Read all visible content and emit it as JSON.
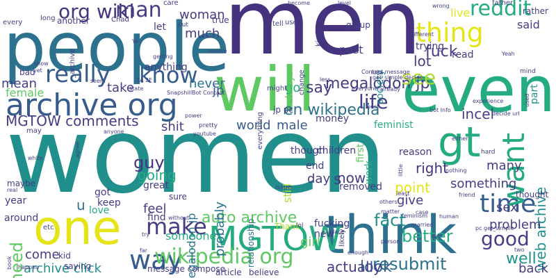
{
  "palette": {
    "purple": "#46337e",
    "indigo": "#433e85",
    "blue": "#365c8d",
    "slate": "#2c728e",
    "teal": "#21908d",
    "green": "#25ab82",
    "lime": "#5ec962",
    "yellowgreen": "#addc30",
    "yellow": "#e5e419"
  },
  "words": [
    {
      "text": "women",
      "color": "teal"
    },
    {
      "text": "men",
      "color": "purple"
    },
    {
      "text": "people",
      "color": "slate"
    },
    {
      "text": "even",
      "color": "green"
    },
    {
      "text": "one",
      "color": "yellow"
    },
    {
      "text": "think",
      "color": "slate"
    },
    {
      "text": "will",
      "color": "lime"
    },
    {
      "text": "gt",
      "color": "green"
    },
    {
      "text": "archive org",
      "color": "blue"
    },
    {
      "text": "MGTOW",
      "color": "green"
    },
    {
      "text": "thing",
      "color": "yellow"
    },
    {
      "text": "time",
      "color": "blue"
    },
    {
      "text": "want",
      "color": "green"
    },
    {
      "text": "really",
      "color": "blue"
    },
    {
      "text": "know",
      "color": "blue"
    },
    {
      "text": "way",
      "color": "blue"
    },
    {
      "text": "make",
      "color": "indigo"
    },
    {
      "text": "good",
      "color": "indigo"
    },
    {
      "text": "wikipedia org",
      "color": "lime"
    },
    {
      "text": "reddit",
      "color": "green"
    },
    {
      "text": "org wiki",
      "color": "purple"
    },
    {
      "text": "man",
      "color": "indigo"
    },
    {
      "text": "en wikipedia",
      "color": "slate"
    },
    {
      "text": "megalodon jp",
      "color": "indigo"
    },
    {
      "text": "life",
      "color": "indigo"
    },
    {
      "text": "see",
      "color": "yellowgreen"
    },
    {
      "text": "MGTOW comments",
      "color": "indigo"
    },
    {
      "text": "auto archive",
      "color": "lime"
    },
    {
      "text": "need",
      "color": "lime"
    },
    {
      "text": "resubmit",
      "color": "slate"
    },
    {
      "text": "fuck",
      "color": "indigo"
    },
    {
      "text": "woman",
      "color": "indigo"
    },
    {
      "text": "much",
      "color": "indigo"
    },
    {
      "text": "say",
      "color": "indigo"
    },
    {
      "text": "lot",
      "color": "indigo"
    },
    {
      "text": "live",
      "color": "yellow"
    },
    {
      "text": "said",
      "color": "indigo"
    },
    {
      "text": "post",
      "color": "indigo"
    },
    {
      "text": "never",
      "color": "slate"
    },
    {
      "text": "guy",
      "color": "purple"
    },
    {
      "text": "right",
      "color": "purple"
    },
    {
      "text": "look",
      "color": "blue"
    },
    {
      "text": "well",
      "color": "teal"
    },
    {
      "text": "web archive",
      "color": "teal"
    },
    {
      "text": "fact",
      "color": "teal"
    },
    {
      "text": "better",
      "color": "green"
    },
    {
      "text": "actually",
      "color": "indigo"
    },
    {
      "text": "back",
      "color": "indigo"
    },
    {
      "text": "problem",
      "color": "indigo"
    },
    {
      "text": "sex",
      "color": "indigo"
    },
    {
      "text": "incel",
      "color": "indigo"
    },
    {
      "text": "world",
      "color": "blue"
    },
    {
      "text": "male",
      "color": "blue"
    },
    {
      "text": "shit",
      "color": "indigo"
    },
    {
      "text": "female",
      "color": "lime"
    },
    {
      "text": "take",
      "color": "indigo"
    },
    {
      "text": "mean",
      "color": "indigo"
    },
    {
      "text": "go",
      "color": "green"
    },
    {
      "text": "archive click",
      "color": "teal"
    },
    {
      "text": "point",
      "color": "yellow"
    },
    {
      "text": "something",
      "color": "indigo"
    },
    {
      "text": "give",
      "color": "indigo"
    },
    {
      "text": "many",
      "color": "indigo"
    },
    {
      "text": "feel",
      "color": "indigo"
    },
    {
      "text": "going",
      "color": "green"
    },
    {
      "text": "now",
      "color": "indigo"
    },
    {
      "text": "girl",
      "color": "lime"
    },
    {
      "text": "come",
      "color": "indigo"
    },
    {
      "text": "u",
      "color": "slate"
    },
    {
      "text": "s",
      "color": "indigo"
    },
    {
      "text": "probably",
      "color": "slate"
    },
    {
      "text": "megalodon jp",
      "color": "slate"
    },
    {
      "text": "jp",
      "color": "blue"
    },
    {
      "text": "someone",
      "color": "green"
    },
    {
      "text": "day",
      "color": "indigo"
    },
    {
      "text": "feminist",
      "color": "green"
    },
    {
      "text": "anything",
      "color": "indigo"
    },
    {
      "text": "always",
      "color": "lime"
    },
    {
      "text": "society",
      "color": "teal"
    },
    {
      "text": "part",
      "color": "teal"
    },
    {
      "text": "read",
      "color": "indigo"
    },
    {
      "text": "trying",
      "color": "indigo"
    },
    {
      "text": "still",
      "color": "yellowgreen"
    },
    {
      "text": "great",
      "color": "indigo"
    },
    {
      "text": "keep",
      "color": "indigo"
    },
    {
      "text": "got",
      "color": "indigo"
    },
    {
      "text": "find",
      "color": "indigo"
    },
    {
      "text": "work",
      "color": "green"
    },
    {
      "text": "children",
      "color": "indigo"
    },
    {
      "text": "though",
      "color": "indigo"
    },
    {
      "text": "first",
      "color": "lime"
    },
    {
      "text": "removed",
      "color": "indigo"
    },
    {
      "text": "money",
      "color": "indigo"
    },
    {
      "text": "fucking",
      "color": "indigo"
    },
    {
      "text": "new",
      "color": "indigo"
    },
    {
      "text": "end",
      "color": "indigo"
    },
    {
      "text": "relationship",
      "color": "slate"
    },
    {
      "text": "year",
      "color": "indigo"
    },
    {
      "text": "maybe",
      "color": "indigo"
    },
    {
      "text": "love",
      "color": "green"
    },
    {
      "text": "message compose",
      "color": "indigo"
    },
    {
      "text": "around",
      "color": "indigo"
    },
    {
      "text": "let",
      "color": "indigo"
    },
    {
      "text": "jp pc",
      "color": "indigo"
    },
    {
      "text": "Thank",
      "color": "yellowgreen"
    },
    {
      "text": "thought",
      "color": "indigo"
    },
    {
      "text": "reason",
      "color": "indigo"
    },
    {
      "text": "kid",
      "color": "indigo"
    },
    {
      "text": "saying",
      "color": "indigo"
    },
    {
      "text": "believe",
      "color": "indigo"
    },
    {
      "text": "article",
      "color": "indigo"
    },
    {
      "text": "group",
      "color": "indigo"
    },
    {
      "text": "rather",
      "color": "indigo"
    },
    {
      "text": "true",
      "color": "indigo"
    },
    {
      "text": "care",
      "color": "indigo"
    },
    {
      "text": "Chad",
      "color": "indigo"
    },
    {
      "text": "father",
      "color": "indigo"
    },
    {
      "text": "every",
      "color": "indigo"
    },
    {
      "text": "long",
      "color": "indigo"
    },
    {
      "text": "another",
      "color": "indigo"
    },
    {
      "text": "real",
      "color": "indigo"
    },
    {
      "text": "bad",
      "color": "indigo"
    },
    {
      "text": "may",
      "color": "indigo"
    },
    {
      "text": "etc",
      "color": "indigo"
    },
    {
      "text": "lol",
      "color": "indigo"
    },
    {
      "text": "issue",
      "color": "indigo"
    },
    {
      "text": "human",
      "color": "indigo"
    },
    {
      "text": "nothing",
      "color": "indigo"
    },
    {
      "text": "hard",
      "color": "indigo"
    },
    {
      "text": "mind",
      "color": "indigo"
    },
    {
      "text": "change",
      "color": "indigo"
    },
    {
      "text": "kind",
      "color": "indigo"
    },
    {
      "text": "everything",
      "color": "indigo"
    },
    {
      "text": "might",
      "color": "indigo"
    },
    {
      "text": "less",
      "color": "indigo"
    },
    {
      "text": "become",
      "color": "indigo"
    },
    {
      "text": "level",
      "color": "indigo"
    },
    {
      "text": "wrong",
      "color": "indigo"
    },
    {
      "text": "tell",
      "color": "indigo"
    },
    {
      "text": "use",
      "color": "indigo"
    },
    {
      "text": "put",
      "color": "indigo"
    },
    {
      "text": "Ye",
      "color": "indigo"
    },
    {
      "text": "3A 2F",
      "color": "indigo"
    },
    {
      "text": "seem",
      "color": "indigo"
    },
    {
      "text": "pretty",
      "color": "indigo"
    },
    {
      "text": "youtube",
      "color": "indigo"
    },
    {
      "text": "anyone",
      "color": "indigo"
    },
    {
      "text": "sure",
      "color": "indigo"
    },
    {
      "text": "source",
      "color": "indigo"
    },
    {
      "text": "idea",
      "color": "indigo"
    },
    {
      "text": "everyone",
      "color": "indigo"
    },
    {
      "text": "already",
      "color": "indigo"
    },
    {
      "text": "bot Info",
      "color": "indigo"
    },
    {
      "text": "decide url",
      "color": "indigo"
    },
    {
      "text": "either",
      "color": "indigo"
    },
    {
      "text": "friend",
      "color": "indigo"
    },
    {
      "text": "matter",
      "color": "indigo"
    },
    {
      "text": "others",
      "color": "indigo"
    },
    {
      "text": "least",
      "color": "indigo"
    },
    {
      "text": "case",
      "color": "indigo"
    },
    {
      "text": "married",
      "color": "indigo"
    },
    {
      "text": "pc get_simple",
      "color": "indigo"
    },
    {
      "text": "sub",
      "color": "indigo"
    },
    {
      "text": "two",
      "color": "indigo"
    },
    {
      "text": "state",
      "color": "indigo"
    },
    {
      "text": "experience",
      "color": "indigo"
    },
    {
      "text": "show",
      "color": "indigo"
    },
    {
      "text": "yet",
      "color": "indigo"
    },
    {
      "text": "getting",
      "color": "indigo"
    },
    {
      "text": "likely",
      "color": "indigo"
    },
    {
      "text": "place",
      "color": "indigo"
    },
    {
      "text": "enough",
      "color": "indigo"
    },
    {
      "text": "person",
      "color": "indigo"
    },
    {
      "text": "book",
      "color": "indigo"
    },
    {
      "text": "happen",
      "color": "indigo"
    },
    {
      "text": "agree",
      "color": "indigo"
    },
    {
      "text": "white",
      "color": "indigo"
    },
    {
      "text": "without",
      "color": "indigo"
    },
    {
      "text": "far",
      "color": "indigo"
    },
    {
      "text": "try",
      "color": "indigo"
    },
    {
      "text": "_archive",
      "color": "indigo"
    },
    {
      "text": "different",
      "color": "indigo"
    },
    {
      "text": "SnapshillBot Contact",
      "color": "indigo"
    },
    {
      "text": "Contact message",
      "color": "indigo"
    },
    {
      "text": "get_simple decide",
      "color": "indigo"
    },
    {
      "text": "Yeah",
      "color": "indigo"
    },
    {
      "text": "used",
      "color": "indigo"
    },
    {
      "text": "best",
      "color": "indigo"
    },
    {
      "text": "power",
      "color": "indigo"
    },
    {
      "text": "feminism",
      "color": "indigo"
    },
    {
      "text": "little",
      "color": "indigo"
    },
    {
      "text": "Lie",
      "color": "indigo"
    },
    {
      "text": "Archived",
      "color": "indigo"
    },
    {
      "text": "SnapshillBot",
      "color": "indigo"
    }
  ]
}
